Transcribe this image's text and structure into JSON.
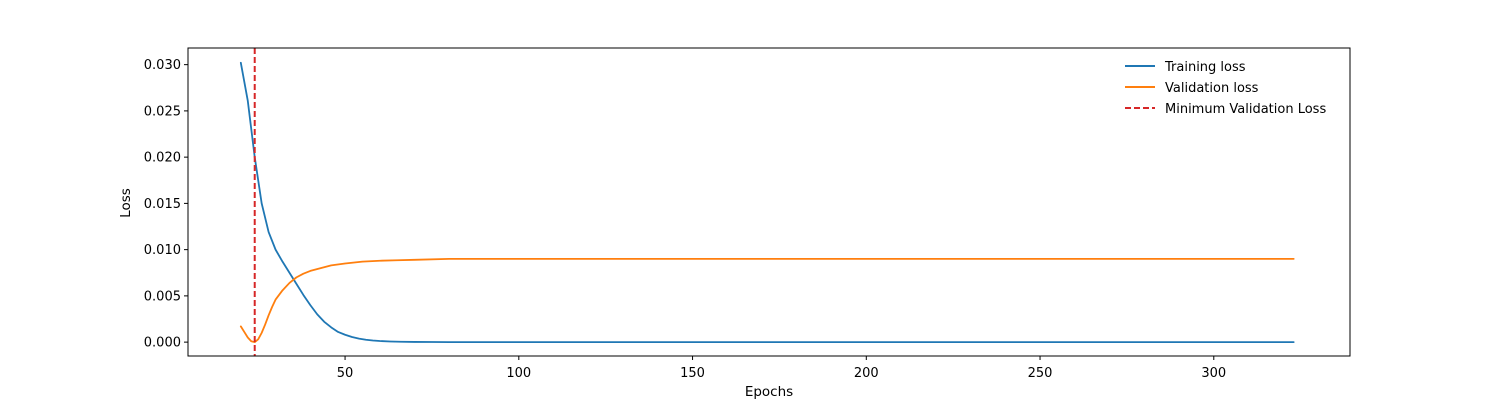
{
  "chart_data": {
    "type": "line",
    "title": "",
    "xlabel": "Epochs",
    "ylabel": "Loss",
    "xlim": [
      4.8,
      339.2
    ],
    "ylim": [
      -0.0015,
      0.0318
    ],
    "xticks": [
      50,
      100,
      150,
      200,
      250,
      300
    ],
    "yticks": [
      0.0,
      0.005,
      0.01,
      0.015,
      0.02,
      0.025,
      0.03
    ],
    "xtick_labels": [
      "50",
      "100",
      "150",
      "200",
      "250",
      "300"
    ],
    "ytick_labels": [
      "0.000",
      "0.005",
      "0.010",
      "0.015",
      "0.020",
      "0.025",
      "0.030"
    ],
    "grid": false,
    "legend_position": "top-right",
    "series": [
      {
        "name": "Training loss",
        "color": "#1f77b4",
        "style": "solid",
        "x": [
          20,
          22,
          24,
          26,
          28,
          30,
          32,
          34,
          36,
          38,
          40,
          42,
          44,
          46,
          48,
          50,
          52,
          54,
          56,
          58,
          60,
          63,
          66,
          70,
          75,
          80,
          90,
          100,
          150,
          200,
          250,
          300,
          323
        ],
        "y": [
          0.0302,
          0.0261,
          0.02,
          0.015,
          0.0119,
          0.01,
          0.0087,
          0.0075,
          0.0063,
          0.0051,
          0.004,
          0.003,
          0.0022,
          0.0016,
          0.0011,
          0.0008,
          0.00055,
          0.00038,
          0.00026,
          0.00018,
          0.00012,
          7e-05,
          4e-05,
          2e-05,
          1e-05,
          0.0,
          0.0,
          0.0,
          0.0,
          0.0,
          0.0,
          0.0,
          0.0
        ]
      },
      {
        "name": "Validation loss",
        "color": "#ff7f0e",
        "style": "solid",
        "x": [
          20,
          21,
          22,
          23,
          24,
          25,
          26,
          27,
          28,
          29,
          30,
          32,
          34,
          36,
          38,
          40,
          43,
          46,
          50,
          55,
          60,
          65,
          70,
          80,
          90,
          100,
          150,
          200,
          250,
          300,
          323
        ],
        "y": [
          0.0017,
          0.0011,
          0.0005,
          0.0001,
          0.0,
          0.0003,
          0.001,
          0.0019,
          0.0029,
          0.0038,
          0.0046,
          0.0056,
          0.0064,
          0.007,
          0.0074,
          0.0077,
          0.008,
          0.0083,
          0.0085,
          0.0087,
          0.0088,
          0.00885,
          0.0089,
          0.009,
          0.009,
          0.009,
          0.009,
          0.009,
          0.009,
          0.009,
          0.009
        ]
      }
    ],
    "vlines": [
      {
        "name": "Minimum Validation Loss",
        "x": 24,
        "color": "#d62728",
        "style": "dashed"
      }
    ]
  }
}
